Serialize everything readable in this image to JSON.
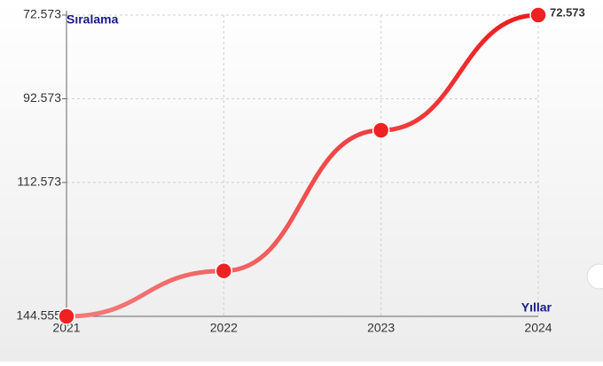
{
  "chart_data": {
    "type": "line",
    "y_label": "Sıralama",
    "x_label": "Yıllar",
    "categories": [
      "2021",
      "2022",
      "2023",
      "2024"
    ],
    "series": [
      {
        "name": "Sıralama",
        "color": "#ee2222",
        "values": [
          144555,
          133700,
          100100,
          72573
        ],
        "value_labels": [
          null,
          null,
          null,
          "72.573"
        ]
      }
    ],
    "ylim": [
      144555,
      72573
    ],
    "yticks": [
      {
        "value": 72573,
        "label": "72.573"
      },
      {
        "value": 92573,
        "label": "92.573"
      },
      {
        "value": 112573,
        "label": "112.573"
      },
      {
        "value": 144555,
        "label": "144.555"
      }
    ],
    "grid": true
  }
}
